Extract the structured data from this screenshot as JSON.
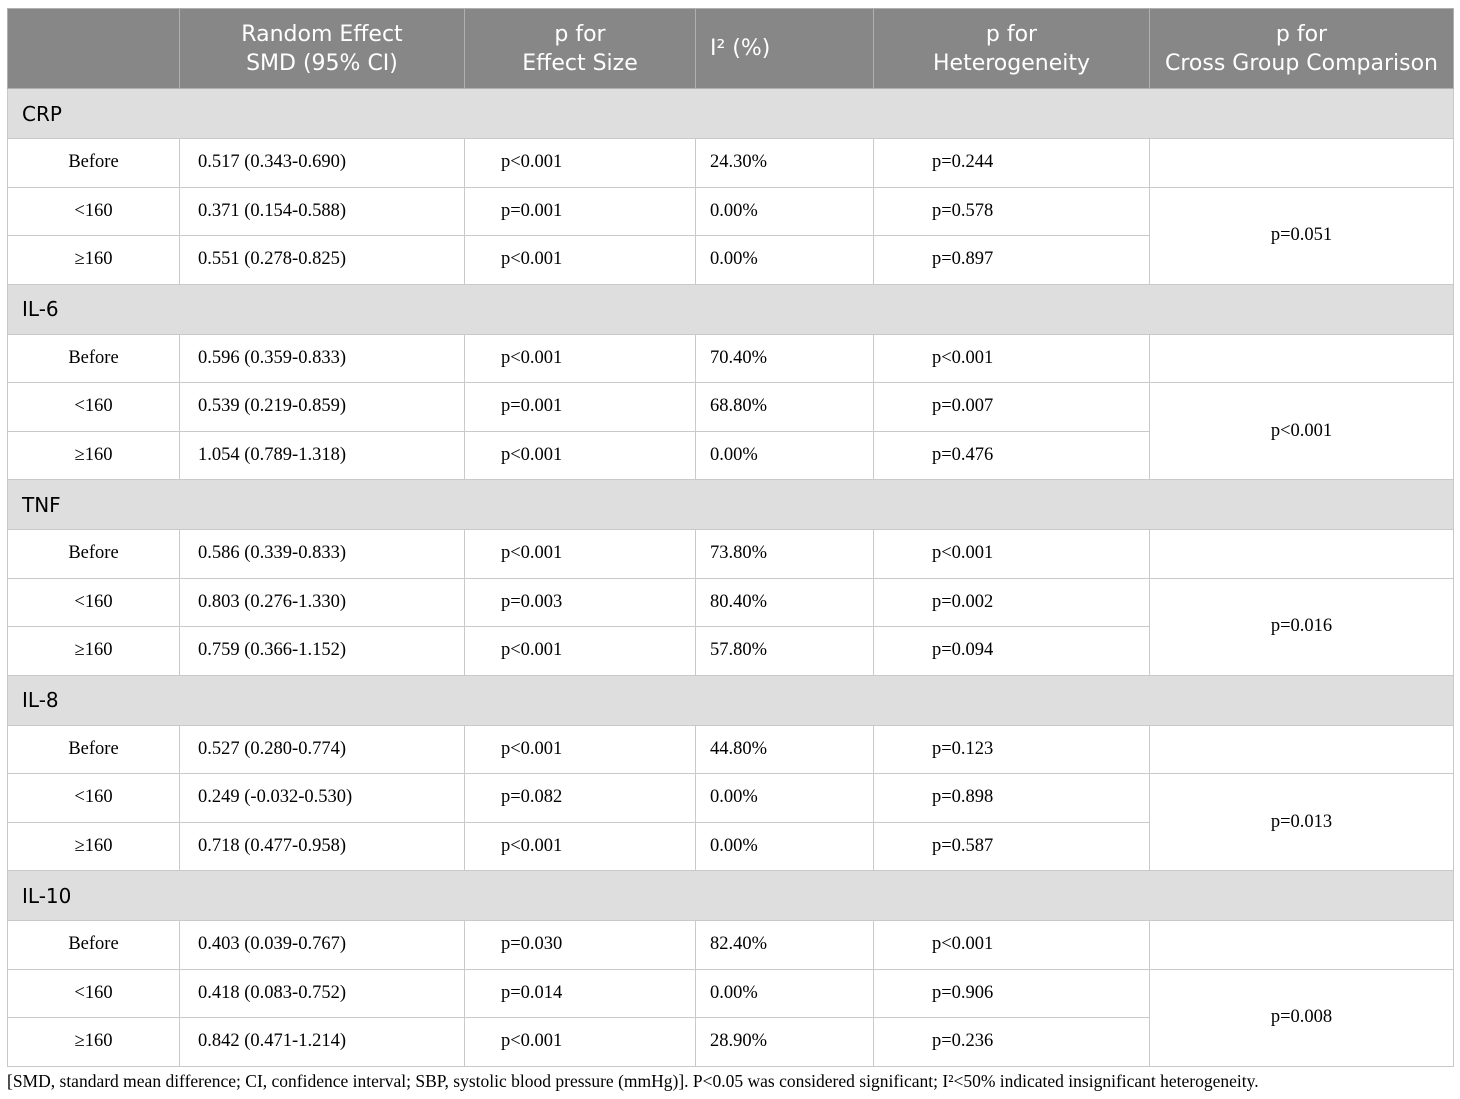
{
  "header": {
    "col0": "",
    "col1": [
      "Random Effect",
      "SMD (95% CI)"
    ],
    "col2": [
      "p for",
      "Effect Size"
    ],
    "col3": "I² (%)",
    "col4": [
      "p for",
      "Heterogeneity"
    ],
    "col5": [
      "p for",
      "Cross Group Comparison"
    ]
  },
  "groups": [
    {
      "name": "CRP",
      "cross": "p=0.051",
      "rows": [
        {
          "sub": "Before",
          "smd": "0.517 (0.343-0.690)",
          "p_es": "p<0.001",
          "i2": "24.30%",
          "p_het": "p=0.244"
        },
        {
          "sub": "<160",
          "smd": "0.371 (0.154-0.588)",
          "p_es": "p=0.001",
          "i2": "0.00%",
          "p_het": "p=0.578"
        },
        {
          "sub": "≥160",
          "smd": "0.551 (0.278-0.825)",
          "p_es": "p<0.001",
          "i2": "0.00%",
          "p_het": "p=0.897"
        }
      ]
    },
    {
      "name": "IL-6",
      "cross": "p<0.001",
      "rows": [
        {
          "sub": "Before",
          "smd": "0.596 (0.359-0.833)",
          "p_es": "p<0.001",
          "i2": "70.40%",
          "p_het": "p<0.001"
        },
        {
          "sub": "<160",
          "smd": "0.539 (0.219-0.859)",
          "p_es": "p=0.001",
          "i2": "68.80%",
          "p_het": "p=0.007"
        },
        {
          "sub": "≥160",
          "smd": "1.054 (0.789-1.318)",
          "p_es": "p<0.001",
          "i2": "0.00%",
          "p_het": "p=0.476"
        }
      ]
    },
    {
      "name": "TNF",
      "cross": "p=0.016",
      "rows": [
        {
          "sub": "Before",
          "smd": "0.586 (0.339-0.833)",
          "p_es": "p<0.001",
          "i2": "73.80%",
          "p_het": "p<0.001"
        },
        {
          "sub": "<160",
          "smd": "0.803 (0.276-1.330)",
          "p_es": "p=0.003",
          "i2": "80.40%",
          "p_het": "p=0.002"
        },
        {
          "sub": "≥160",
          "smd": "0.759 (0.366-1.152)",
          "p_es": "p<0.001",
          "i2": "57.80%",
          "p_het": "p=0.094"
        }
      ]
    },
    {
      "name": "IL-8",
      "cross": "p=0.013",
      "rows": [
        {
          "sub": "Before",
          "smd": "0.527 (0.280-0.774)",
          "p_es": "p<0.001",
          "i2": "44.80%",
          "p_het": "p=0.123"
        },
        {
          "sub": "<160",
          "smd": "0.249 (-0.032-0.530)",
          "p_es": "p=0.082",
          "i2": "0.00%",
          "p_het": "p=0.898"
        },
        {
          "sub": "≥160",
          "smd": "0.718 (0.477-0.958)",
          "p_es": "p<0.001",
          "i2": "0.00%",
          "p_het": "p=0.587"
        }
      ]
    },
    {
      "name": "IL-10",
      "cross": "p=0.008",
      "rows": [
        {
          "sub": "Before",
          "smd": "0.403 (0.039-0.767)",
          "p_es": "p=0.030",
          "i2": "82.40%",
          "p_het": "p<0.001"
        },
        {
          "sub": "<160",
          "smd": "0.418 (0.083-0.752)",
          "p_es": "p=0.014",
          "i2": "0.00%",
          "p_het": "p=0.906"
        },
        {
          "sub": "≥160",
          "smd": "0.842 (0.471-1.214)",
          "p_es": "p<0.001",
          "i2": "28.90%",
          "p_het": "p=0.236"
        }
      ]
    }
  ],
  "footnote": "[SMD, standard mean difference; CI, confidence interval; SBP, systolic blood pressure (mmHg)]. P<0.05 was considered significant; I²<50% indicated insignificant heterogeneity."
}
